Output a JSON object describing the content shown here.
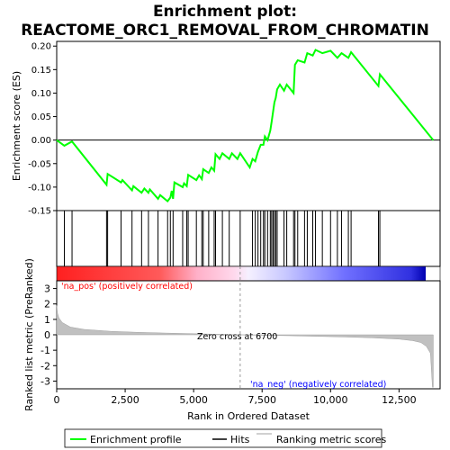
{
  "chart_data": {
    "type": "line",
    "title_line1": "Enrichment plot:",
    "title_line2": "REACTOME_ORC1_REMOVAL_FROM_CHROMATIN",
    "top_panel": {
      "ylabel": "Enrichment score (ES)",
      "ylim": [
        -0.15,
        0.21
      ],
      "yticks": [
        -0.15,
        -0.1,
        -0.05,
        0.0,
        0.05,
        0.1,
        0.15,
        0.2
      ],
      "ytick_labels": [
        "-0.15",
        "-0.10",
        "-0.05",
        "0.00",
        "0.05",
        "0.10",
        "0.15",
        "0.20"
      ],
      "series_name": "Enrichment profile",
      "line_color": "#00ff00",
      "points": [
        [
          0,
          0.0
        ],
        [
          280,
          -0.012
        ],
        [
          560,
          -0.003
        ],
        [
          1820,
          -0.095
        ],
        [
          1860,
          -0.072
        ],
        [
          2350,
          -0.09
        ],
        [
          2400,
          -0.085
        ],
        [
          2750,
          -0.107
        ],
        [
          2800,
          -0.098
        ],
        [
          3100,
          -0.112
        ],
        [
          3200,
          -0.103
        ],
        [
          3350,
          -0.112
        ],
        [
          3400,
          -0.105
        ],
        [
          3700,
          -0.125
        ],
        [
          3780,
          -0.117
        ],
        [
          4050,
          -0.13
        ],
        [
          4150,
          -0.122
        ],
        [
          4200,
          -0.108
        ],
        [
          4250,
          -0.125
        ],
        [
          4300,
          -0.09
        ],
        [
          4600,
          -0.1
        ],
        [
          4650,
          -0.092
        ],
        [
          4750,
          -0.098
        ],
        [
          4800,
          -0.074
        ],
        [
          5100,
          -0.085
        ],
        [
          5200,
          -0.075
        ],
        [
          5300,
          -0.083
        ],
        [
          5350,
          -0.062
        ],
        [
          5550,
          -0.07
        ],
        [
          5650,
          -0.058
        ],
        [
          5750,
          -0.065
        ],
        [
          5800,
          -0.03
        ],
        [
          5950,
          -0.04
        ],
        [
          6050,
          -0.028
        ],
        [
          6300,
          -0.04
        ],
        [
          6400,
          -0.028
        ],
        [
          6600,
          -0.04
        ],
        [
          6700,
          -0.028
        ],
        [
          7050,
          -0.058
        ],
        [
          7150,
          -0.04
        ],
        [
          7250,
          -0.045
        ],
        [
          7350,
          -0.025
        ],
        [
          7450,
          -0.01
        ],
        [
          7550,
          -0.01
        ],
        [
          7600,
          0.008
        ],
        [
          7700,
          0.0
        ],
        [
          7800,
          0.02
        ],
        [
          7850,
          0.04
        ],
        [
          7900,
          0.06
        ],
        [
          7950,
          0.08
        ],
        [
          8000,
          0.09
        ],
        [
          8050,
          0.108
        ],
        [
          8150,
          0.118
        ],
        [
          8300,
          0.105
        ],
        [
          8400,
          0.118
        ],
        [
          8650,
          0.1
        ],
        [
          8700,
          0.16
        ],
        [
          8800,
          0.17
        ],
        [
          9050,
          0.165
        ],
        [
          9150,
          0.185
        ],
        [
          9350,
          0.18
        ],
        [
          9450,
          0.192
        ],
        [
          9700,
          0.185
        ],
        [
          10000,
          0.19
        ],
        [
          10250,
          0.175
        ],
        [
          10400,
          0.185
        ],
        [
          10650,
          0.175
        ],
        [
          10750,
          0.187
        ],
        [
          11750,
          0.115
        ],
        [
          11800,
          0.14
        ],
        [
          13750,
          0.0
        ]
      ]
    },
    "hits": [
      280,
      560,
      1820,
      1860,
      2350,
      2750,
      3100,
      3350,
      3700,
      4050,
      4150,
      4250,
      4600,
      4750,
      4800,
      5100,
      5300,
      5350,
      5550,
      5750,
      5800,
      6050,
      6300,
      6700,
      7150,
      7250,
      7350,
      7450,
      7550,
      7600,
      7700,
      7800,
      7850,
      7900,
      7950,
      8000,
      8050,
      8300,
      8400,
      8650,
      8700,
      8800,
      9050,
      9150,
      9350,
      9450,
      9700,
      10000,
      10250,
      10400,
      10650,
      10750,
      11750,
      11800
    ],
    "bottom_panel": {
      "ylabel": "Ranked list metric (PreRanked)",
      "xlabel": "Rank in Ordered Dataset",
      "ylim": [
        -3.5,
        3.5
      ],
      "yticks": [
        -3,
        -2,
        -1,
        0,
        1,
        2,
        3
      ],
      "ytick_labels": [
        "-3",
        "-2",
        "-1",
        "0",
        "1",
        "2",
        "3"
      ],
      "xlim": [
        0,
        14000
      ],
      "xticks": [
        0,
        2500,
        5000,
        7500,
        10000,
        12500
      ],
      "xtick_labels": [
        "0",
        "2,500",
        "5,000",
        "7,500",
        "10,000",
        "12,500"
      ],
      "metric_profile": [
        [
          0,
          1.9
        ],
        [
          30,
          1.4
        ],
        [
          80,
          1.1
        ],
        [
          200,
          0.8
        ],
        [
          500,
          0.5
        ],
        [
          1000,
          0.35
        ],
        [
          2000,
          0.22
        ],
        [
          3000,
          0.16
        ],
        [
          4000,
          0.11
        ],
        [
          5000,
          0.07
        ],
        [
          6000,
          0.03
        ],
        [
          6700,
          0.0
        ],
        [
          7500,
          -0.03
        ],
        [
          8500,
          -0.06
        ],
        [
          9500,
          -0.1
        ],
        [
          10500,
          -0.14
        ],
        [
          11500,
          -0.19
        ],
        [
          12500,
          -0.28
        ],
        [
          13000,
          -0.38
        ],
        [
          13300,
          -0.5
        ],
        [
          13500,
          -0.75
        ],
        [
          13650,
          -1.2
        ],
        [
          13720,
          -3.4
        ],
        [
          13750,
          -3.4
        ]
      ],
      "zero_cross_label": "Zero cross at 6700",
      "zero_cross": 6700,
      "pos_label": "'na_pos' (positively correlated)",
      "neg_label": "'na_neg' (negatively correlated)",
      "pos_color": "#ff0000",
      "neg_color": "#0000ff"
    },
    "n_genes": 13750,
    "legend": [
      {
        "label": "Enrichment profile",
        "color": "#00ff00"
      },
      {
        "label": "Hits",
        "color": "#000000"
      },
      {
        "label": "Ranking metric scores",
        "color": "#c0c0c0"
      }
    ]
  }
}
